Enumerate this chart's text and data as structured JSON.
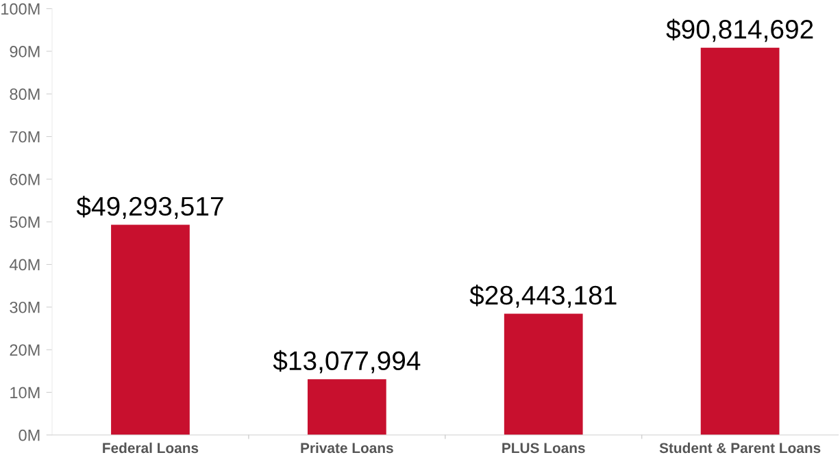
{
  "chart_data": {
    "type": "bar",
    "categories": [
      "Federal Loans",
      "Private Loans",
      "PLUS Loans",
      "Student & Parent Loans"
    ],
    "values": [
      49293517,
      13077994,
      28443181,
      90814692
    ],
    "value_labels": [
      "$49,293,517",
      "$13,077,994",
      "$28,443,181",
      "$90,814,692"
    ],
    "color": "#c8102e",
    "ylim": [
      0,
      100000000
    ],
    "yticks": [
      {
        "value": 0,
        "label": "0M"
      },
      {
        "value": 10000000,
        "label": "10M"
      },
      {
        "value": 20000000,
        "label": "20M"
      },
      {
        "value": 30000000,
        "label": "30M"
      },
      {
        "value": 40000000,
        "label": "40M"
      },
      {
        "value": 50000000,
        "label": "50M"
      },
      {
        "value": 60000000,
        "label": "60M"
      },
      {
        "value": 70000000,
        "label": "70M"
      },
      {
        "value": 80000000,
        "label": "80M"
      },
      {
        "value": 90000000,
        "label": "90M"
      },
      {
        "value": 100000000,
        "label": "100M"
      }
    ],
    "grid": false,
    "legend": false
  }
}
